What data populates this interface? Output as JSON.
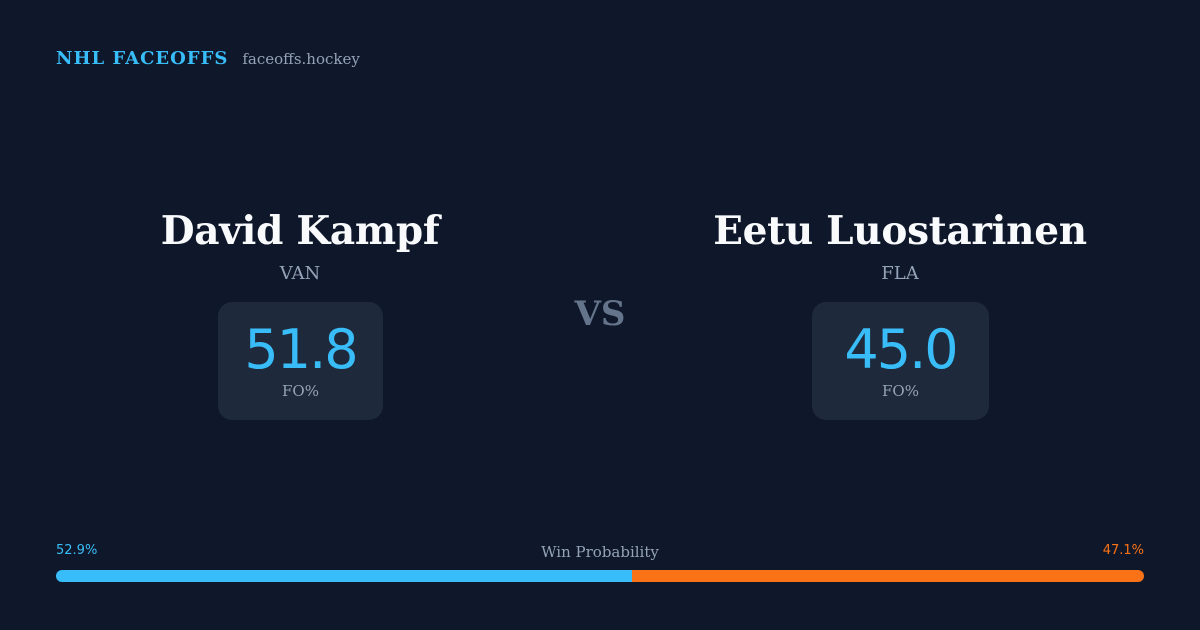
{
  "brand": {
    "title": "NHL FACEOFFS",
    "domain": "faceoffs.hockey"
  },
  "players": [
    {
      "name": "David Kampf",
      "team": "VAN",
      "fo_pct": "51.8",
      "fo_label": "FO%"
    },
    {
      "name": "Eetu Luostarinen",
      "team": "FLA",
      "fo_pct": "45.0",
      "fo_label": "FO%"
    }
  ],
  "vs_label": "VS",
  "win_probability": {
    "title": "Win Probability",
    "left_label": "52.9%",
    "right_label": "47.1%",
    "left_value": 52.9,
    "right_value": 47.1,
    "left_color": "#38bdf8",
    "right_color": "#f97316"
  },
  "colors": {
    "background": "#0f172a",
    "card": "#1e293b",
    "accent": "#38bdf8",
    "secondary_accent": "#f97316",
    "muted_text": "#94a3b8"
  }
}
